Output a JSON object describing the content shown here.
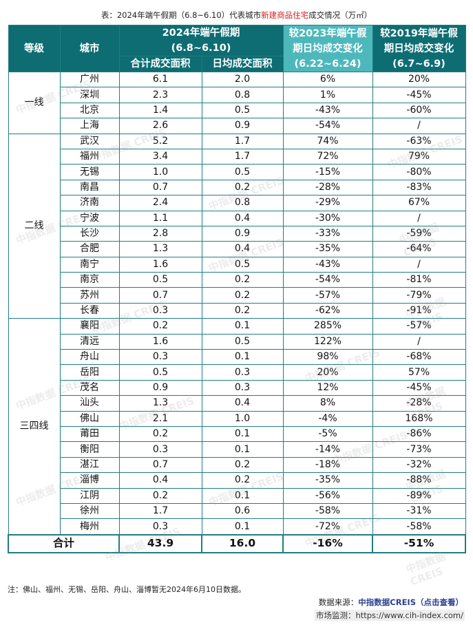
{
  "caption": {
    "prefix": "表：2024年端午假期（6.8~6.10）代表城市",
    "highlight": "新建商品住宅",
    "suffix": "成交情况（万㎡）"
  },
  "header": {
    "tier": "等级",
    "city": "城市",
    "period2024_line1": "2024年端午假期",
    "period2024_line2": "(6.8~6.10)",
    "total_area": "合计成交面积",
    "daily_area": "日均成交面积",
    "vs2023_line1": "较2023年端午假",
    "vs2023_line2": "期日均成交变化",
    "vs2023_line3": "(6.22~6.24)",
    "vs2019_line1": "较2019年端午假",
    "vs2019_line2": "期日均成交变化",
    "vs2019_line3": "(6.7~6.9)"
  },
  "groups": [
    {
      "tier": "一线",
      "rows": [
        [
          "广州",
          "6.1",
          "2.0",
          "6%",
          "20%"
        ],
        [
          "深圳",
          "2.3",
          "0.8",
          "1%",
          "-45%"
        ],
        [
          "北京",
          "1.4",
          "0.5",
          "-43%",
          "-60%"
        ],
        [
          "上海",
          "2.6",
          "0.9",
          "-54%",
          "/"
        ]
      ]
    },
    {
      "tier": "二线",
      "rows": [
        [
          "武汉",
          "5.2",
          "1.7",
          "74%",
          "-63%"
        ],
        [
          "福州",
          "3.4",
          "1.7",
          "72%",
          "79%"
        ],
        [
          "无锡",
          "1.0",
          "0.5",
          "-15%",
          "-80%"
        ],
        [
          "南昌",
          "0.7",
          "0.2",
          "-28%",
          "-83%"
        ],
        [
          "济南",
          "2.4",
          "0.8",
          "-29%",
          "67%"
        ],
        [
          "宁波",
          "1.1",
          "0.4",
          "-30%",
          "/"
        ],
        [
          "长沙",
          "2.8",
          "0.9",
          "-33%",
          "-59%"
        ],
        [
          "合肥",
          "1.3",
          "0.4",
          "-35%",
          "-64%"
        ],
        [
          "南宁",
          "1.6",
          "0.5",
          "-43%",
          "/"
        ],
        [
          "南京",
          "0.5",
          "0.2",
          "-54%",
          "-81%"
        ],
        [
          "苏州",
          "0.7",
          "0.2",
          "-57%",
          "-79%"
        ],
        [
          "长春",
          "0.3",
          "0.2",
          "-62%",
          "-91%"
        ]
      ]
    },
    {
      "tier": "三四线",
      "rows": [
        [
          "襄阳",
          "0.2",
          "0.1",
          "285%",
          "-57%"
        ],
        [
          "清远",
          "1.6",
          "0.5",
          "122%",
          "/"
        ],
        [
          "舟山",
          "0.3",
          "0.1",
          "98%",
          "-68%"
        ],
        [
          "岳阳",
          "0.5",
          "0.3",
          "20%",
          "57%"
        ],
        [
          "茂名",
          "0.9",
          "0.3",
          "12%",
          "-45%"
        ],
        [
          "汕头",
          "1.3",
          "0.4",
          "8%",
          "-28%"
        ],
        [
          "佛山",
          "2.1",
          "1.0",
          "-4%",
          "168%"
        ],
        [
          "莆田",
          "0.2",
          "0.1",
          "-5%",
          "-86%"
        ],
        [
          "衡阳",
          "0.3",
          "0.1",
          "-14%",
          "-73%"
        ],
        [
          "湛江",
          "0.7",
          "0.2",
          "-18%",
          "-32%"
        ],
        [
          "淄博",
          "0.4",
          "0.2",
          "-35%",
          "-88%"
        ],
        [
          "江阴",
          "0.2",
          "0.1",
          "-56%",
          "-89%"
        ],
        [
          "徐州",
          "1.7",
          "0.6",
          "-58%",
          "-31%"
        ],
        [
          "梅州",
          "0.3",
          "0.1",
          "-72%",
          "-58%"
        ]
      ]
    }
  ],
  "total": {
    "label": "合计",
    "total_area": "43.9",
    "daily_area": "16.0",
    "vs2023": "-16%",
    "vs2019": "-51%"
  },
  "note": "注：佛山、福州、无锡、岳阳、舟山、淄博暂无2024年6月10日数据。",
  "source": {
    "label": "数据来源：",
    "brand": "中指数据CREIS（点击查看）"
  },
  "monitor": "市场监测：https://www.cih-index.com/",
  "watermark": "中指数据 CREIS"
}
